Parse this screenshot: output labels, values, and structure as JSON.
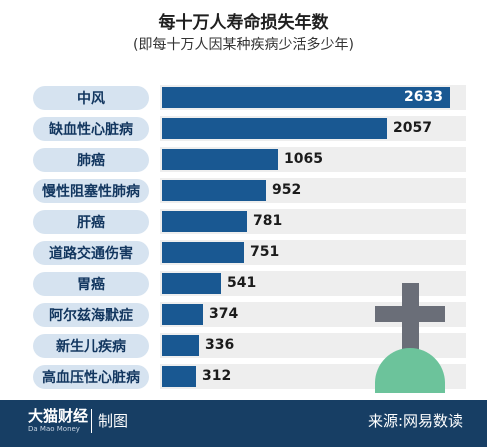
{
  "chart_data": {
    "type": "bar",
    "orientation": "horizontal",
    "title": "每十万人寿命损失年数",
    "subtitle": "(即每十万人因某种疾病少活多少年)",
    "categories": [
      "中风",
      "缺血性心脏病",
      "肺癌",
      "慢性阻塞性肺病",
      "肝癌",
      "道路交通伤害",
      "胃癌",
      "阿尔兹海默症",
      "新生儿疾病",
      "高血压性心脏病"
    ],
    "values": [
      2633,
      2057,
      1065,
      952,
      781,
      751,
      541,
      374,
      336,
      312
    ],
    "xlim": [
      0,
      2633
    ],
    "grid": false,
    "legend": "none",
    "colors": {
      "bar": "#195892",
      "label_pill": "#d6e3f0",
      "row_band": "#eeeeee",
      "cross": "#6a6e78",
      "grave": "#6cc39b"
    }
  },
  "footer": {
    "brand": "大猫财经",
    "brand_sub": "Da Mao Money",
    "credit": "制图",
    "source": "来源:网易数读",
    "background": "#173e64"
  },
  "decoration": {
    "icon": "tombstone-cross-icon"
  }
}
